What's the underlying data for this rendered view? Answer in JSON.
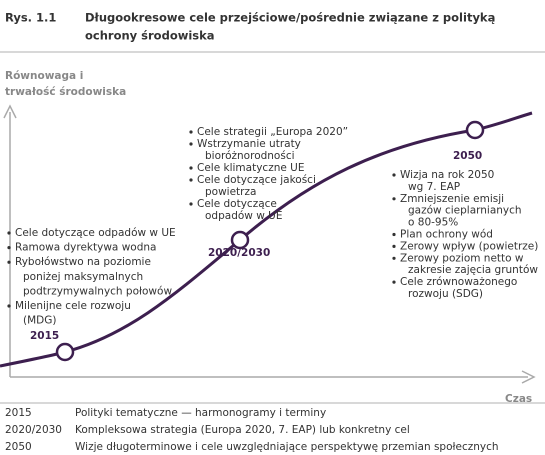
{
  "header": {
    "label": "Rys. 1.1",
    "title_lines": [
      "Długookresowe cele przejściowe/pośrednie związane z polityką",
      "ochrony środowiska"
    ]
  },
  "axes": {
    "y_label_lines": [
      "Równowaga i",
      "trwałość środowiska"
    ],
    "x_label": "Czas"
  },
  "milestones": [
    {
      "label": "2015",
      "items": [
        [
          "Cele dotyczące odpadów w UE"
        ],
        [
          "Ramowa dyrektywa wodna"
        ],
        [
          "Rybołówstwo na poziomie",
          "poniżej maksymalnych",
          "podtrzymywalnych połowów"
        ],
        [
          "Milenijne cele rozwoju",
          "(MDG)"
        ]
      ]
    },
    {
      "label": "2020/2030",
      "items": [
        [
          "Cele strategii „Europa 2020”"
        ],
        [
          "Wstrzymanie utraty",
          "bioróżnorodności"
        ],
        [
          "Cele klimatyczne UE"
        ],
        [
          "Cele dotyczące jakości",
          "powietrza"
        ],
        [
          "Cele dotyczące",
          "odpadów w UE"
        ]
      ]
    },
    {
      "label": "2050",
      "items": [
        [
          "Wizja na rok 2050",
          "wg 7. EAP"
        ],
        [
          "Zmniejszenie emisji",
          "gazów cieplarnianych",
          "o 80-95%"
        ],
        [
          "Plan ochrony wód"
        ],
        [
          "Zerowy wpływ (powietrze)"
        ],
        [
          "Zerowy poziom netto w",
          "zakresie zajęcia gruntów"
        ],
        [
          "Cele zrównoważonego",
          "rozwoju (SDG)"
        ]
      ]
    }
  ],
  "legend": [
    [
      "2015",
      "Polityki tematyczne — harmonogramy i terminy"
    ],
    [
      "2020/2030",
      "Kompleksowa strategia (Europa 2020, 7. EAP) lub konkretny cel"
    ],
    [
      "2050",
      "Wizje długoterminowe i cele uwzględniające perspektywę przemian społecznych"
    ]
  ]
}
